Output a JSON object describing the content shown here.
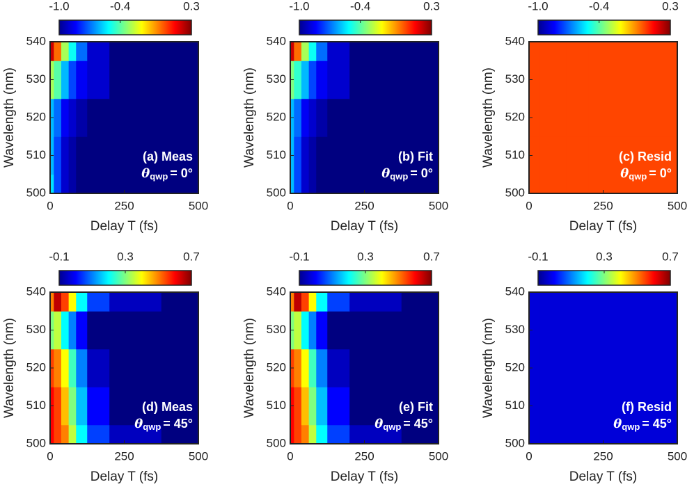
{
  "chart_data": [
    {
      "type": "heatmap",
      "xlabel": "Delay T (fs)",
      "ylabel": "Wavelength (nm)",
      "annotation": "(a) Meas",
      "theta": {
        "symbol": "θ",
        "subscript": "qwp",
        "text": "= 0°"
      },
      "x": [
        0,
        25,
        50,
        75,
        100,
        150,
        250,
        500
      ],
      "y": [
        500,
        510,
        520,
        530,
        540
      ],
      "z": [
        [
          -0.55,
          -0.75,
          -0.9,
          -0.95,
          -1.0,
          -1.0,
          -1.0,
          -1.0
        ],
        [
          -0.6,
          -0.75,
          -0.9,
          -0.95,
          -1.0,
          -1.0,
          -1.0,
          -1.0
        ],
        [
          -0.6,
          -0.7,
          -0.85,
          -0.9,
          -0.95,
          -1.0,
          -1.0,
          -1.0
        ],
        [
          -0.3,
          -0.4,
          -0.6,
          -0.75,
          -0.85,
          -0.9,
          -1.0,
          -1.0
        ],
        [
          0.2,
          0.0,
          -0.3,
          -0.5,
          -0.7,
          -0.9,
          -1.0,
          -1.0
        ]
      ],
      "xlim": [
        0,
        500
      ],
      "xticks": [
        0,
        250,
        500
      ],
      "ylim": [
        500,
        540
      ],
      "yticks": [
        500,
        510,
        520,
        530,
        540
      ],
      "clim": [
        -1,
        0.3
      ],
      "cticks": [
        {
          "value": -1,
          "label": "-1.0"
        },
        -0.4,
        0.3
      ]
    },
    {
      "type": "heatmap",
      "xlabel": "Delay T (fs)",
      "ylabel": "Wavelength (nm)",
      "annotation": "(b) Fit",
      "theta": {
        "symbol": "θ",
        "subscript": "qwp",
        "text": "= 0°"
      },
      "x": [
        0,
        25,
        50,
        75,
        100,
        150,
        250,
        500
      ],
      "y": [
        500,
        510,
        520,
        530,
        540
      ],
      "z": [
        [
          -0.6,
          -0.75,
          -0.9,
          -0.95,
          -1.0,
          -1.0,
          -1.0,
          -1.0
        ],
        [
          -0.6,
          -0.75,
          -0.9,
          -0.95,
          -1.0,
          -1.0,
          -1.0,
          -1.0
        ],
        [
          -0.6,
          -0.7,
          -0.85,
          -0.9,
          -0.95,
          -1.0,
          -1.0,
          -1.0
        ],
        [
          -0.35,
          -0.45,
          -0.6,
          -0.75,
          -0.85,
          -0.9,
          -1.0,
          -1.0
        ],
        [
          0.2,
          0.0,
          -0.3,
          -0.5,
          -0.7,
          -0.9,
          -1.0,
          -1.0
        ]
      ],
      "xlim": [
        0,
        500
      ],
      "xticks": [
        0,
        250,
        500
      ],
      "ylim": [
        500,
        540
      ],
      "yticks": [
        500,
        510,
        520,
        530,
        540
      ],
      "clim": [
        -1,
        0.3
      ],
      "cticks": [
        {
          "value": -1,
          "label": "-1.0"
        },
        -0.4,
        0.3
      ]
    },
    {
      "type": "heatmap",
      "xlabel": "Delay T (fs)",
      "ylabel": "Wavelength (nm)",
      "annotation": "(c) Resid",
      "theta": {
        "symbol": "θ",
        "subscript": "qwp",
        "text": "= 0°"
      },
      "x": [
        0,
        25,
        50,
        75,
        100,
        150,
        250,
        500
      ],
      "y": [
        500,
        510,
        520,
        530,
        540
      ],
      "z": [
        [
          0.05,
          0.05,
          0.05,
          0.05,
          0.05,
          0.05,
          0.05,
          0.05
        ],
        [
          0.05,
          0.05,
          0.05,
          0.05,
          0.05,
          0.05,
          0.05,
          0.05
        ],
        [
          0.05,
          0.05,
          0.05,
          0.05,
          0.05,
          0.05,
          0.05,
          0.05
        ],
        [
          0.05,
          0.05,
          0.05,
          0.05,
          0.05,
          0.05,
          0.05,
          0.05
        ],
        [
          0.05,
          0.05,
          0.05,
          0.05,
          0.05,
          0.05,
          0.05,
          0.05
        ]
      ],
      "xlim": [
        0,
        500
      ],
      "xticks": [
        0,
        250,
        500
      ],
      "ylim": [
        500,
        540
      ],
      "yticks": [
        500,
        510,
        520,
        530,
        540
      ],
      "clim": [
        -1,
        0.3
      ],
      "cticks": [
        {
          "value": -1,
          "label": "-1.0"
        },
        -0.4,
        0.3
      ]
    },
    {
      "type": "heatmap",
      "xlabel": "Delay T (fs)",
      "ylabel": "Wavelength (nm)",
      "annotation": "(d) Meas",
      "theta": {
        "symbol": "θ",
        "subscript": "qwp",
        "text": "= 45°"
      },
      "x": [
        0,
        25,
        50,
        75,
        100,
        150,
        250,
        500
      ],
      "y": [
        500,
        510,
        520,
        530,
        540
      ],
      "z": [
        [
          0.6,
          0.55,
          0.5,
          0.35,
          0.2,
          0.05,
          -0.05,
          -0.1
        ],
        [
          0.6,
          0.55,
          0.45,
          0.3,
          0.15,
          0.0,
          -0.1,
          -0.1
        ],
        [
          0.55,
          0.5,
          0.4,
          0.25,
          0.1,
          -0.05,
          -0.1,
          -0.1
        ],
        [
          0.3,
          0.35,
          0.2,
          0.1,
          0.0,
          -0.1,
          -0.1,
          -0.1
        ],
        [
          0.5,
          0.65,
          0.55,
          0.4,
          0.2,
          0.05,
          -0.05,
          -0.1
        ]
      ],
      "xlim": [
        0,
        500
      ],
      "xticks": [
        0,
        250,
        500
      ],
      "ylim": [
        500,
        540
      ],
      "yticks": [
        500,
        510,
        520,
        530,
        540
      ],
      "clim": [
        -0.1,
        0.7
      ],
      "cticks": [
        -0.1,
        0.3,
        0.7
      ]
    },
    {
      "type": "heatmap",
      "xlabel": "Delay T (fs)",
      "ylabel": "Wavelength (nm)",
      "annotation": "(e) Fit",
      "theta": {
        "symbol": "θ",
        "subscript": "qwp",
        "text": "= 45°"
      },
      "x": [
        0,
        25,
        50,
        75,
        100,
        150,
        250,
        500
      ],
      "y": [
        500,
        510,
        520,
        530,
        540
      ],
      "z": [
        [
          0.6,
          0.55,
          0.5,
          0.35,
          0.2,
          0.05,
          -0.05,
          -0.1
        ],
        [
          0.6,
          0.55,
          0.45,
          0.3,
          0.15,
          0.0,
          -0.1,
          -0.1
        ],
        [
          0.55,
          0.5,
          0.4,
          0.25,
          0.1,
          -0.05,
          -0.1,
          -0.1
        ],
        [
          0.3,
          0.35,
          0.2,
          0.1,
          0.0,
          -0.1,
          -0.1,
          -0.1
        ],
        [
          0.5,
          0.65,
          0.55,
          0.4,
          0.2,
          0.05,
          -0.05,
          -0.1
        ]
      ],
      "xlim": [
        0,
        500
      ],
      "xticks": [
        0,
        250,
        500
      ],
      "ylim": [
        500,
        540
      ],
      "yticks": [
        500,
        510,
        520,
        530,
        540
      ],
      "clim": [
        -0.1,
        0.7
      ],
      "cticks": [
        -0.1,
        0.3,
        0.7
      ]
    },
    {
      "type": "heatmap",
      "xlabel": "Delay T (fs)",
      "ylabel": "Wavelength (nm)",
      "annotation": "(f) Resid",
      "theta": {
        "symbol": "θ",
        "subscript": "qwp",
        "text": "= 45°"
      },
      "x": [
        0,
        25,
        50,
        75,
        100,
        150,
        250,
        500
      ],
      "y": [
        500,
        510,
        520,
        530,
        540
      ],
      "z": [
        [
          -0.03,
          -0.03,
          -0.03,
          -0.03,
          -0.03,
          -0.03,
          -0.03,
          -0.03
        ],
        [
          -0.03,
          -0.03,
          -0.03,
          -0.03,
          -0.03,
          -0.03,
          -0.03,
          -0.03
        ],
        [
          -0.03,
          -0.03,
          -0.03,
          -0.03,
          -0.03,
          -0.03,
          -0.03,
          -0.03
        ],
        [
          -0.03,
          -0.03,
          -0.03,
          -0.03,
          -0.03,
          -0.03,
          -0.03,
          -0.03
        ],
        [
          -0.03,
          -0.03,
          -0.03,
          -0.03,
          -0.03,
          -0.03,
          -0.03,
          -0.03
        ]
      ],
      "xlim": [
        0,
        500
      ],
      "xticks": [
        0,
        250,
        500
      ],
      "ylim": [
        500,
        540
      ],
      "yticks": [
        500,
        510,
        520,
        530,
        540
      ],
      "clim": [
        -0.1,
        0.7
      ],
      "cticks": [
        -0.1,
        0.3,
        0.7
      ]
    }
  ]
}
